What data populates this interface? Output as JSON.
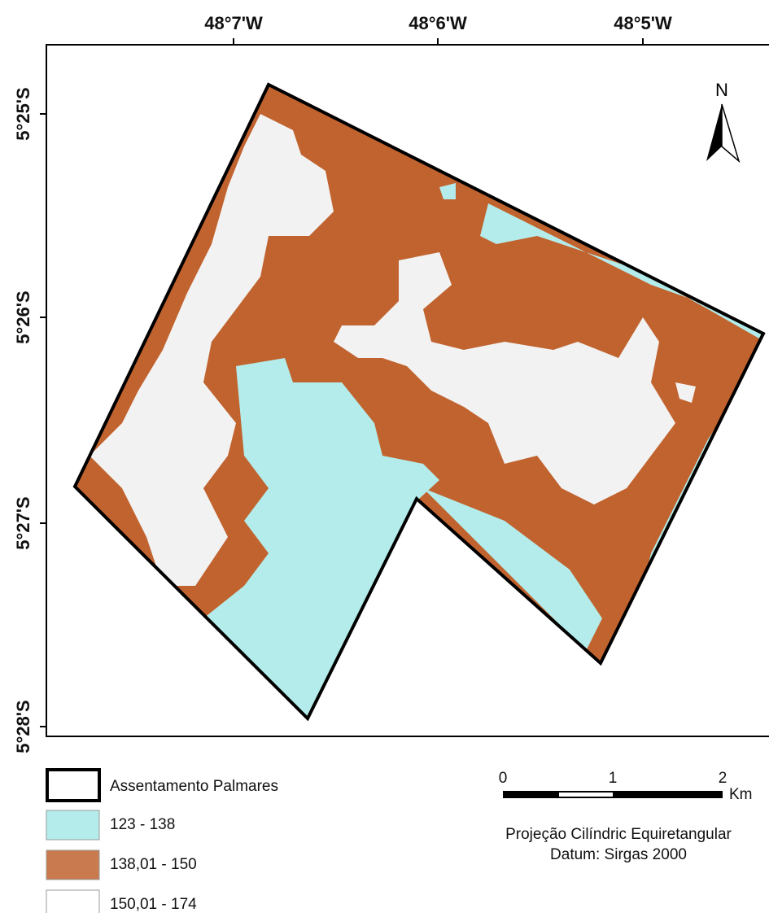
{
  "map": {
    "longitude_labels": [
      "48°7'W",
      "48°6'W",
      "48°5'W"
    ],
    "latitude_labels": [
      "5°25'S",
      "5°26'S",
      "5°27'S",
      "5°28'S"
    ],
    "north_label": "N",
    "legend": [
      "Assentamento Palmares",
      "123 - 138",
      "138,01 - 150",
      "150,01 - 174"
    ],
    "scale_bar": {
      "labels": [
        "0",
        "1",
        "2"
      ],
      "unit": "Km"
    },
    "projection": "Projeção Cilíndric Equiretangular",
    "datum": "Datum: Sirgas 2000"
  }
}
